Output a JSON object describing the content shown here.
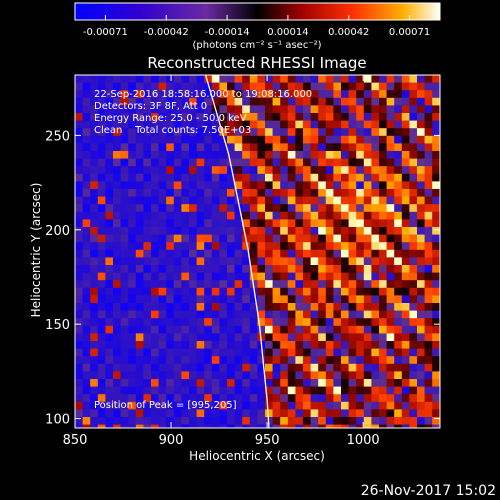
{
  "chart_data": {
    "type": "heatmap",
    "title": "Reconstructed RHESSI Image",
    "colorbar": {
      "ticks": [
        "-0.00071",
        "-0.00042",
        "-0.00014",
        "0.00014",
        "0.00042",
        "0.00071"
      ],
      "unit_label": "(photons cm⁻² s⁻¹ asec⁻²)",
      "range": [
        -0.00071,
        0.00071
      ]
    },
    "xlabel": "Heliocentric X (arcsec)",
    "ylabel": "Heliocentric Y (arcsec)",
    "xlim": [
      850,
      1040
    ],
    "ylim": [
      95,
      282
    ],
    "xticks": [
      850,
      900,
      950,
      1000
    ],
    "yticks": [
      100,
      150,
      200,
      250
    ],
    "annotations": [
      "22-Sep-2016 18:58:16.000 to 19:08:16.000",
      "Detectors: 3F 8F, Att 0",
      "Energy Range: 25.0 - 50.0 keV",
      "Clean    Total counts: 7.50E+03"
    ],
    "peak_label": "Position of Peak = [995,205]",
    "limb_curve": [
      [
        918,
        282
      ],
      [
        930,
        240
      ],
      [
        940,
        190
      ],
      [
        946,
        150
      ],
      [
        950,
        110
      ],
      [
        951,
        95
      ]
    ],
    "grid": false
  },
  "footer_date": "26-Nov-2017 15:02"
}
